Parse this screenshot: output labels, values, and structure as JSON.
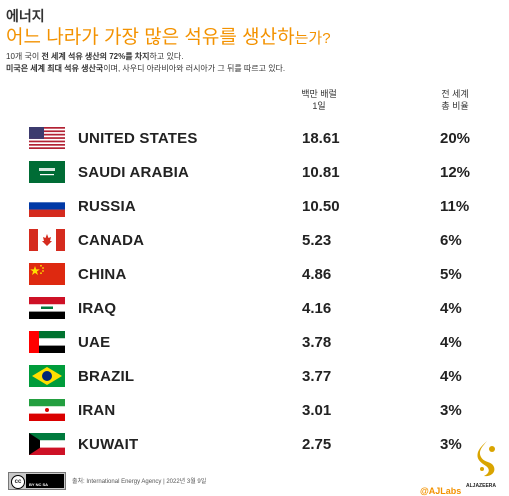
{
  "header": {
    "kicker": "에너지",
    "title_main": "어느 나라가 가장 많은 석유를 생산하",
    "title_small": "는가?",
    "desc_line1_pre": "10개 국이 ",
    "desc_line1_bold1": "전 세계 석유 생산의 72%를 차지",
    "desc_line1_post": "하고 있다.",
    "desc_line2_bold": "미국은 세계 최대 석유 생산국",
    "desc_line2_post": "이며, 사우디 아라비아와 러시아가 그 뒤를 따르고 있다."
  },
  "columns": {
    "production_line1": "백만 배럴",
    "production_line2": "1일",
    "share_line1": "전 세계",
    "share_line2": "총 비율"
  },
  "rows": [
    {
      "country": "UNITED STATES",
      "flag": "us-flag",
      "production": "18.61",
      "share": "20%"
    },
    {
      "country": "SAUDI ARABIA",
      "flag": "saudi-flag",
      "production": "10.81",
      "share": "12%"
    },
    {
      "country": "RUSSIA",
      "flag": "russia-flag",
      "production": "10.50",
      "share": "11%"
    },
    {
      "country": "CANADA",
      "flag": "canada-flag",
      "production": "5.23",
      "share": "6%"
    },
    {
      "country": "CHINA",
      "flag": "china-flag",
      "production": "4.86",
      "share": "5%"
    },
    {
      "country": "IRAQ",
      "flag": "iraq-flag",
      "production": "4.16",
      "share": "4%"
    },
    {
      "country": "UAE",
      "flag": "uae-flag",
      "production": "3.78",
      "share": "4%"
    },
    {
      "country": "BRAZIL",
      "flag": "brazil-flag",
      "production": "3.77",
      "share": "4%"
    },
    {
      "country": "IRAN",
      "flag": "iran-flag",
      "production": "3.01",
      "share": "3%"
    },
    {
      "country": "KUWAIT",
      "flag": "kuwait-flag",
      "production": "2.75",
      "share": "3%"
    }
  ],
  "footer": {
    "cc_label": "BY NC SA",
    "source": "출처: International Energy Agency | 2022년 3월 9일",
    "credit": "@AJLabs",
    "logo_text": "ALJAZEERA"
  },
  "colors": {
    "accent": "#f39200",
    "text": "#222222"
  }
}
